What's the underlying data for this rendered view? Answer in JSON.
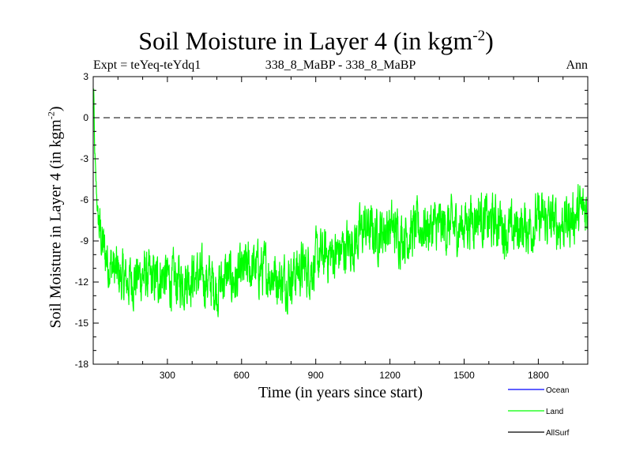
{
  "chart_data": {
    "type": "line",
    "title": "Soil Moisture in Layer 4 (in kgm",
    "title_sup": "-2",
    "title_suffix": ")",
    "subtitle_left": "Expt = teYeq-teYdq1",
    "subtitle_center": "338_8_MaBP - 338_8_MaBP",
    "subtitle_right": "Ann",
    "xlabel": "Time (in years since start)",
    "ylabel": "Soil Moisture in Layer 4 (in kgm",
    "ylabel_sup": "-2",
    "ylabel_suffix": ")",
    "xlim": [
      0,
      2000
    ],
    "ylim": [
      -18,
      3
    ],
    "xticks": [
      300,
      600,
      900,
      1200,
      1500,
      1800
    ],
    "xtick_labels": [
      "300",
      "600",
      "900",
      "1200",
      "1500",
      "1800"
    ],
    "yticks": [
      3,
      0,
      -3,
      -6,
      -9,
      -12,
      -15,
      -18
    ],
    "ytick_labels": [
      "3",
      "0",
      "-3",
      "-6",
      "-9",
      "-12",
      "-15",
      "-18"
    ],
    "reference_line": {
      "y": 0,
      "style": "dashed"
    },
    "legend": [
      {
        "name": "Ocean",
        "color": "#0000ff"
      },
      {
        "name": "Land",
        "color": "#00ff00"
      },
      {
        "name": "AllSurf",
        "color": "#000000"
      }
    ],
    "series": [
      {
        "name": "Land",
        "color": "#00ff00",
        "x": [
          0,
          2,
          5,
          10,
          20,
          40,
          60,
          80,
          100,
          130,
          160,
          200,
          240,
          280,
          320,
          360,
          400,
          440,
          480,
          500,
          540,
          580,
          620,
          660,
          700,
          740,
          760,
          800,
          840,
          880,
          900,
          940,
          980,
          1020,
          1060,
          1100,
          1140,
          1200,
          1240,
          1280,
          1320,
          1360,
          1400,
          1440,
          1480,
          1520,
          1560,
          1600,
          1640,
          1680,
          1720,
          1760,
          1800,
          1840,
          1880,
          1920,
          1960,
          2000
        ],
        "values": [
          0.5,
          2.0,
          -2.0,
          -4.5,
          -7.5,
          -9.5,
          -10.5,
          -11.0,
          -11.5,
          -12.0,
          -11.8,
          -11.5,
          -12.0,
          -11.5,
          -12.0,
          -11.8,
          -11.5,
          -11.8,
          -12.0,
          -12.5,
          -11.5,
          -12.0,
          -11.0,
          -11.0,
          -11.2,
          -11.5,
          -12.0,
          -11.5,
          -11.0,
          -11.0,
          -10.5,
          -10.0,
          -10.0,
          -9.5,
          -9.0,
          -8.0,
          -8.5,
          -8.0,
          -8.5,
          -8.5,
          -8.0,
          -8.0,
          -8.0,
          -8.0,
          -8.0,
          -7.5,
          -7.0,
          -7.8,
          -7.5,
          -8.5,
          -8.0,
          -8.0,
          -7.5,
          -7.5,
          -7.8,
          -7.5,
          -7.0,
          -6.5
        ]
      }
    ]
  }
}
